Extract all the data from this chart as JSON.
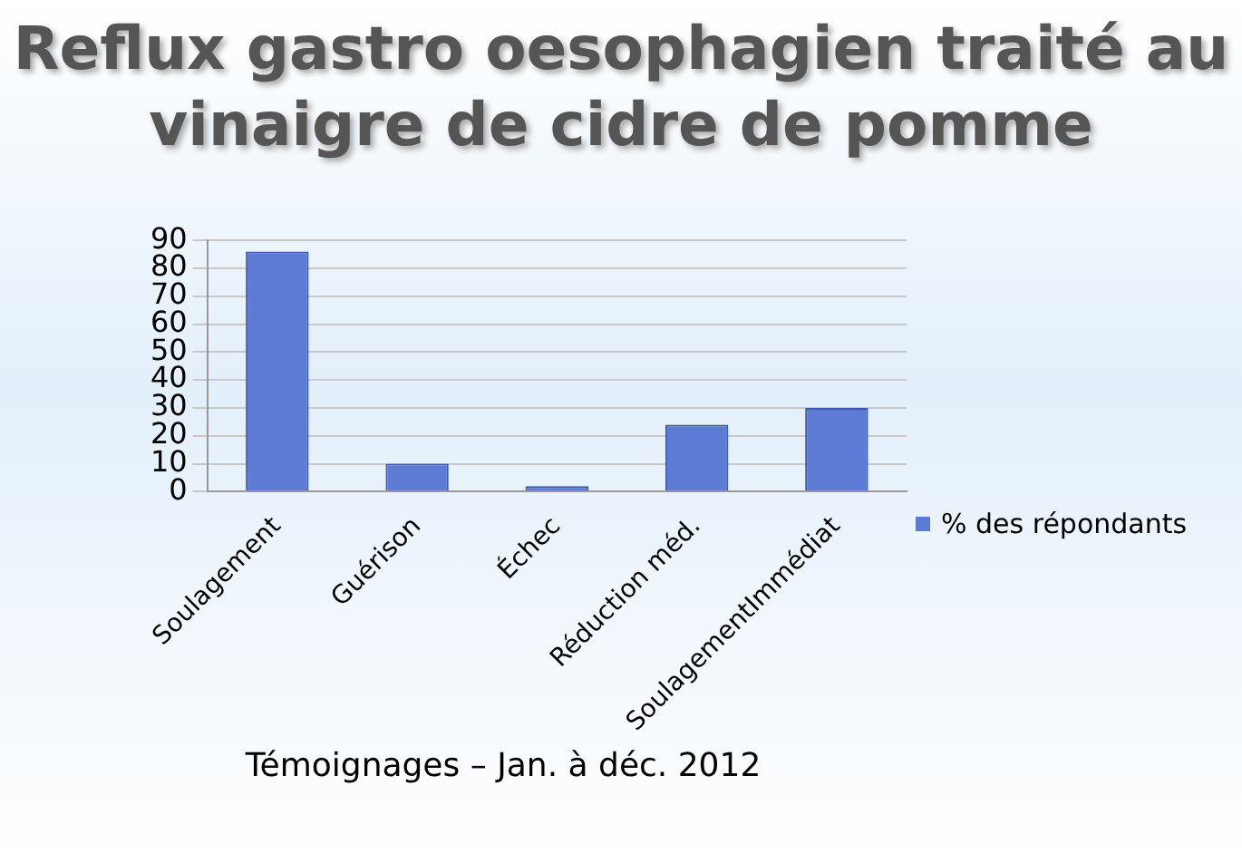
{
  "chart_data": {
    "type": "bar",
    "title": "Reflux gastro oesophagien traité au vinaigre de cidre de pomme",
    "categories": [
      "Soulagement",
      "Guérison",
      "Échec",
      "Réduction méd.",
      "SoulagementImmédiat"
    ],
    "series": [
      {
        "name": "% des répondants",
        "color": "#5b7bd5",
        "values": [
          86,
          10,
          2,
          24,
          30
        ]
      }
    ],
    "ylim": [
      0,
      90
    ],
    "yticks": [
      0,
      10,
      20,
      30,
      40,
      50,
      60,
      70,
      80,
      90
    ],
    "grid": "y",
    "legend": "right",
    "annotations": [
      "Témoignages – Jan. à déc. 2012"
    ]
  }
}
